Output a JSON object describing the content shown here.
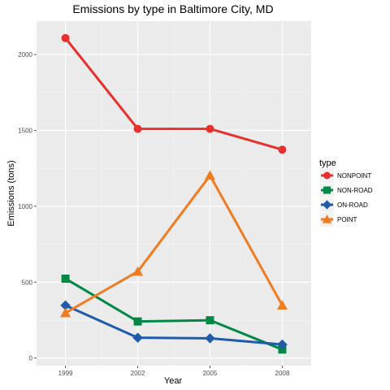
{
  "chart_data": {
    "type": "line",
    "title": "Emissions by type in Baltimore City, MD",
    "xlabel": "Year",
    "ylabel": "Emissions (tons)",
    "x": [
      1999,
      2002,
      2005,
      2008
    ],
    "xlim": [
      1997.8,
      2009.2
    ],
    "ylim": [
      -50,
      2220
    ],
    "yticks": [
      0,
      500,
      1000,
      1500,
      2000
    ],
    "grid": true,
    "legend": {
      "title": "type",
      "position": "right"
    },
    "series": [
      {
        "name": "NONPOINT",
        "color": "#e8302e",
        "marker": "circle",
        "values": [
          2108,
          1510,
          1510,
          1373
        ]
      },
      {
        "name": "NON-ROAD",
        "color": "#008844",
        "marker": "square",
        "values": [
          523,
          241,
          249,
          56
        ]
      },
      {
        "name": "ON-ROAD",
        "color": "#1f5ba8",
        "marker": "diamond",
        "values": [
          347,
          134,
          130,
          89
        ]
      },
      {
        "name": "POINT",
        "color": "#f07c22",
        "marker": "triangle",
        "values": [
          297,
          570,
          1203,
          347
        ]
      }
    ]
  }
}
